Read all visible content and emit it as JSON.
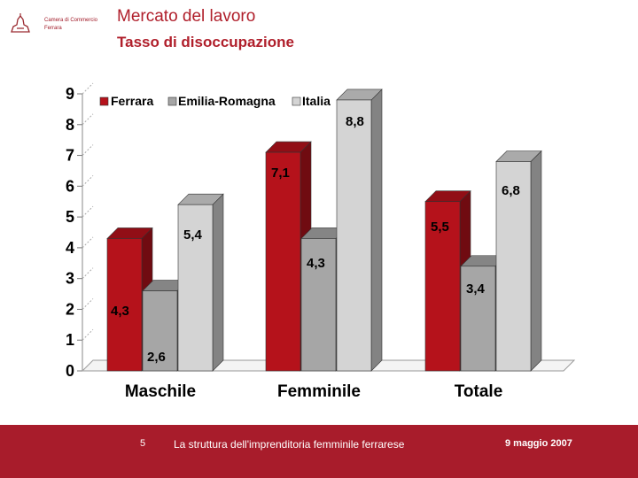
{
  "header": {
    "logo_line1": "Camera di Commercio",
    "logo_line2": "Ferrara",
    "title": "Mercato del lavoro",
    "subtitle": "Tasso di disoccupazione"
  },
  "footer": {
    "page_number": "5",
    "text": "La struttura dell'imprenditoria femminile ferrarese",
    "date": "9 maggio 2007"
  },
  "colors": {
    "brand": "#a81c2b",
    "ferrara": "#b5121b",
    "emilia_romagna": "#a6a6a6",
    "italia": "#d4d4d4"
  },
  "chart_data": {
    "type": "bar",
    "title": "Tasso di disoccupazione",
    "categories": [
      "Maschile",
      "Femminile",
      "Totale"
    ],
    "series": [
      {
        "name": "Ferrara",
        "values": [
          4.3,
          7.1,
          5.5
        ],
        "labels": [
          "4,3",
          "7,1",
          "5,5"
        ]
      },
      {
        "name": "Emilia-Romagna",
        "values": [
          2.6,
          4.3,
          3.4
        ],
        "labels": [
          "2,6",
          "4,3",
          "3,4"
        ]
      },
      {
        "name": "Italia",
        "values": [
          5.4,
          8.8,
          6.8
        ],
        "labels": [
          "5,4",
          "8,8",
          "6,8"
        ]
      }
    ],
    "yticks": [
      "0",
      "1",
      "2",
      "3",
      "4",
      "5",
      "6",
      "7",
      "8",
      "9"
    ],
    "ylim": [
      0,
      9
    ],
    "xlabel": "",
    "ylabel": "",
    "legend_position": "top",
    "style": "3d"
  }
}
